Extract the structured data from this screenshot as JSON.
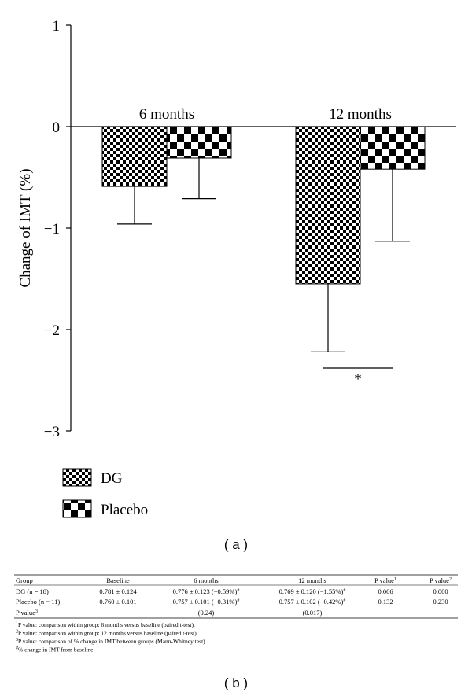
{
  "chart_data": {
    "type": "bar",
    "y_label": "Change of IMT (%)",
    "categories": [
      "6 months",
      "12 months"
    ],
    "series": [
      {
        "name": "DG",
        "color": "#000000",
        "pattern": "checker-fine",
        "values": [
          -0.59,
          -1.55
        ],
        "errors": [
          0.37,
          0.67
        ]
      },
      {
        "name": "Placebo",
        "color": "#000000",
        "pattern": "checker-coarse",
        "values": [
          -0.31,
          -0.42
        ],
        "errors": [
          0.4,
          0.71
        ]
      }
    ],
    "ylim": [
      -3,
      1
    ],
    "yticks": [
      {
        "value": -3,
        "label": "−3"
      },
      {
        "value": -2,
        "label": "−2"
      },
      {
        "value": -1,
        "label": "−1"
      },
      0,
      1
    ],
    "annotation": "*",
    "panel_label": "( a )"
  },
  "table": {
    "header": [
      "Group",
      "Baseline",
      "6 months",
      "12 months",
      {
        "text": "P value",
        "sup": "1"
      },
      {
        "text": "P value",
        "sup": "2"
      }
    ],
    "rows": [
      [
        "DG (n = 18)",
        "0.781 ± 0.124",
        {
          "text": "0.776 ± 0.123 (−0.59%)",
          "sup": "#"
        },
        {
          "text": "0.769 ± 0.120 (−1.55%)",
          "sup": "#"
        },
        "0.006",
        "0.000"
      ],
      [
        "Placebo (n = 11)",
        "0.760 ± 0.101",
        {
          "text": "0.757 ± 0.101 (−0.31%)",
          "sup": "#"
        },
        {
          "text": "0.757 ± 0.102 (−0.42%)",
          "sup": "#"
        },
        "0.132",
        "0.230"
      ]
    ],
    "between_groups": {
      "label": {
        "text": "P value",
        "sup": "3"
      },
      "values": [
        "(0.24)",
        "(0.017)"
      ]
    },
    "footnotes": [
      {
        "sup": "1",
        "text": "P value: comparison within group: 6 months versus baseline (paired t-test)."
      },
      {
        "sup": "2",
        "text": "P value: comparison within group: 12 months versus baseline (paired t-test)."
      },
      {
        "sup": "3",
        "text": "P value: comparison of % change in IMT between groups (Mann-Whitney test)."
      },
      {
        "sup": "#",
        "text": "% change in IMT from baseline."
      }
    ],
    "panel_label": "( b )"
  }
}
